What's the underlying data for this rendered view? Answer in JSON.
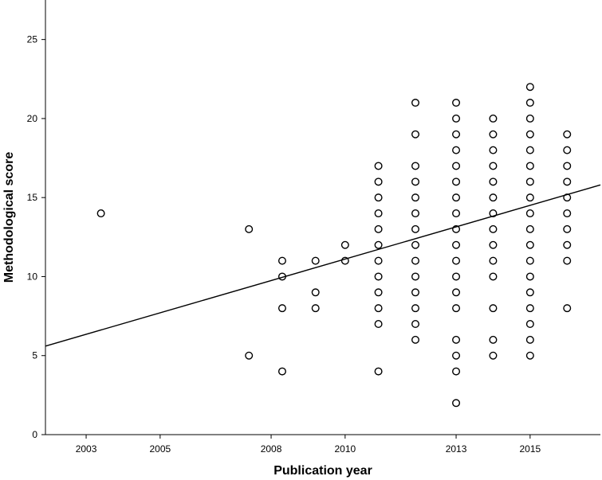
{
  "chart_data": {
    "type": "scatter",
    "xlabel": "Publication year",
    "ylabel": "Methodological score",
    "xlim": [
      2001.9,
      2016.9
    ],
    "ylim": [
      0,
      27.5
    ],
    "x_ticks": [
      2003,
      2005,
      2008,
      2010,
      2013,
      2015
    ],
    "x_tick_labels": [
      "2003",
      "2005",
      "2008",
      "2010",
      "2013",
      "2015"
    ],
    "y_ticks": [
      0,
      5,
      10,
      15,
      20,
      25
    ],
    "y_tick_labels": [
      "0",
      "5",
      "10",
      "15",
      "20",
      "25"
    ],
    "grid": false,
    "fit_line": {
      "x": [
        2001.9,
        2016.9
      ],
      "y": [
        5.6,
        15.8
      ]
    },
    "points": [
      {
        "x": 2003.4,
        "y": 14
      },
      {
        "x": 2007.4,
        "y": 13
      },
      {
        "x": 2007.4,
        "y": 5
      },
      {
        "x": 2008.3,
        "y": 11
      },
      {
        "x": 2008.3,
        "y": 10
      },
      {
        "x": 2008.3,
        "y": 8
      },
      {
        "x": 2008.3,
        "y": 4
      },
      {
        "x": 2009.2,
        "y": 11
      },
      {
        "x": 2009.2,
        "y": 9
      },
      {
        "x": 2009.2,
        "y": 8
      },
      {
        "x": 2010.0,
        "y": 12
      },
      {
        "x": 2010.0,
        "y": 11
      },
      {
        "x": 2010.9,
        "y": 17
      },
      {
        "x": 2010.9,
        "y": 16
      },
      {
        "x": 2010.9,
        "y": 15
      },
      {
        "x": 2010.9,
        "y": 14
      },
      {
        "x": 2010.9,
        "y": 13
      },
      {
        "x": 2010.9,
        "y": 12
      },
      {
        "x": 2010.9,
        "y": 11
      },
      {
        "x": 2010.9,
        "y": 10
      },
      {
        "x": 2010.9,
        "y": 9
      },
      {
        "x": 2010.9,
        "y": 8
      },
      {
        "x": 2010.9,
        "y": 7
      },
      {
        "x": 2010.9,
        "y": 4
      },
      {
        "x": 2011.9,
        "y": 21
      },
      {
        "x": 2011.9,
        "y": 19
      },
      {
        "x": 2011.9,
        "y": 17
      },
      {
        "x": 2011.9,
        "y": 16
      },
      {
        "x": 2011.9,
        "y": 15
      },
      {
        "x": 2011.9,
        "y": 14
      },
      {
        "x": 2011.9,
        "y": 13
      },
      {
        "x": 2011.9,
        "y": 12
      },
      {
        "x": 2011.9,
        "y": 11
      },
      {
        "x": 2011.9,
        "y": 10
      },
      {
        "x": 2011.9,
        "y": 9
      },
      {
        "x": 2011.9,
        "y": 8
      },
      {
        "x": 2011.9,
        "y": 7
      },
      {
        "x": 2011.9,
        "y": 6
      },
      {
        "x": 2013.0,
        "y": 21
      },
      {
        "x": 2013.0,
        "y": 20
      },
      {
        "x": 2013.0,
        "y": 19
      },
      {
        "x": 2013.0,
        "y": 18
      },
      {
        "x": 2013.0,
        "y": 17
      },
      {
        "x": 2013.0,
        "y": 16
      },
      {
        "x": 2013.0,
        "y": 15
      },
      {
        "x": 2013.0,
        "y": 14
      },
      {
        "x": 2013.0,
        "y": 13
      },
      {
        "x": 2013.0,
        "y": 12
      },
      {
        "x": 2013.0,
        "y": 11
      },
      {
        "x": 2013.0,
        "y": 10
      },
      {
        "x": 2013.0,
        "y": 9
      },
      {
        "x": 2013.0,
        "y": 8
      },
      {
        "x": 2013.0,
        "y": 6
      },
      {
        "x": 2013.0,
        "y": 5
      },
      {
        "x": 2013.0,
        "y": 4
      },
      {
        "x": 2013.0,
        "y": 2
      },
      {
        "x": 2014.0,
        "y": 20
      },
      {
        "x": 2014.0,
        "y": 19
      },
      {
        "x": 2014.0,
        "y": 18
      },
      {
        "x": 2014.0,
        "y": 17
      },
      {
        "x": 2014.0,
        "y": 16
      },
      {
        "x": 2014.0,
        "y": 15
      },
      {
        "x": 2014.0,
        "y": 14
      },
      {
        "x": 2014.0,
        "y": 13
      },
      {
        "x": 2014.0,
        "y": 12
      },
      {
        "x": 2014.0,
        "y": 11
      },
      {
        "x": 2014.0,
        "y": 10
      },
      {
        "x": 2014.0,
        "y": 8
      },
      {
        "x": 2014.0,
        "y": 6
      },
      {
        "x": 2014.0,
        "y": 5
      },
      {
        "x": 2015.0,
        "y": 22
      },
      {
        "x": 2015.0,
        "y": 21
      },
      {
        "x": 2015.0,
        "y": 20
      },
      {
        "x": 2015.0,
        "y": 19
      },
      {
        "x": 2015.0,
        "y": 18
      },
      {
        "x": 2015.0,
        "y": 17
      },
      {
        "x": 2015.0,
        "y": 16
      },
      {
        "x": 2015.0,
        "y": 15
      },
      {
        "x": 2015.0,
        "y": 14
      },
      {
        "x": 2015.0,
        "y": 13
      },
      {
        "x": 2015.0,
        "y": 12
      },
      {
        "x": 2015.0,
        "y": 11
      },
      {
        "x": 2015.0,
        "y": 10
      },
      {
        "x": 2015.0,
        "y": 9
      },
      {
        "x": 2015.0,
        "y": 8
      },
      {
        "x": 2015.0,
        "y": 7
      },
      {
        "x": 2015.0,
        "y": 6
      },
      {
        "x": 2015.0,
        "y": 5
      },
      {
        "x": 2016.0,
        "y": 19
      },
      {
        "x": 2016.0,
        "y": 18
      },
      {
        "x": 2016.0,
        "y": 17
      },
      {
        "x": 2016.0,
        "y": 16
      },
      {
        "x": 2016.0,
        "y": 15
      },
      {
        "x": 2016.0,
        "y": 14
      },
      {
        "x": 2016.0,
        "y": 13
      },
      {
        "x": 2016.0,
        "y": 12
      },
      {
        "x": 2016.0,
        "y": 11
      },
      {
        "x": 2016.0,
        "y": 8
      }
    ]
  }
}
